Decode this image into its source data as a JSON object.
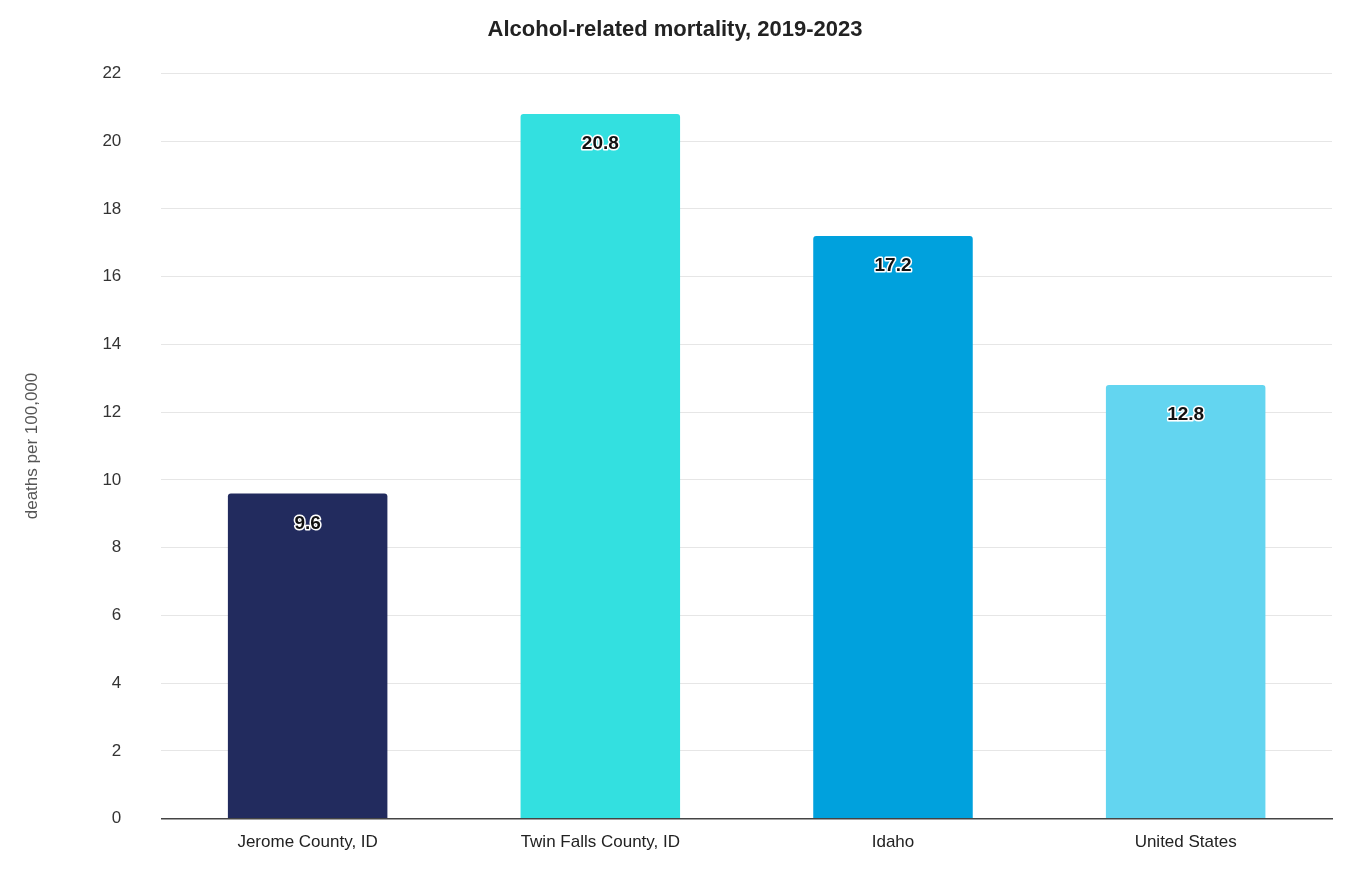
{
  "chart_data": {
    "type": "bar",
    "title": "Alcohol-related mortality, 2019-2023",
    "ylabel": "deaths per 100,000",
    "categories": [
      "Jerome County, ID",
      "Twin Falls County, ID",
      "Idaho",
      "United States"
    ],
    "values": [
      9.6,
      20.8,
      17.2,
      12.8
    ],
    "colors": [
      "#222b5e",
      "#33e0e0",
      "#00a1dd",
      "#63d5f0"
    ],
    "ylim": [
      0,
      22
    ],
    "yticks": [
      0,
      2,
      4,
      6,
      8,
      10,
      12,
      14,
      16,
      18,
      20,
      22
    ],
    "grid": "y",
    "legend": false,
    "data_labels": true
  }
}
